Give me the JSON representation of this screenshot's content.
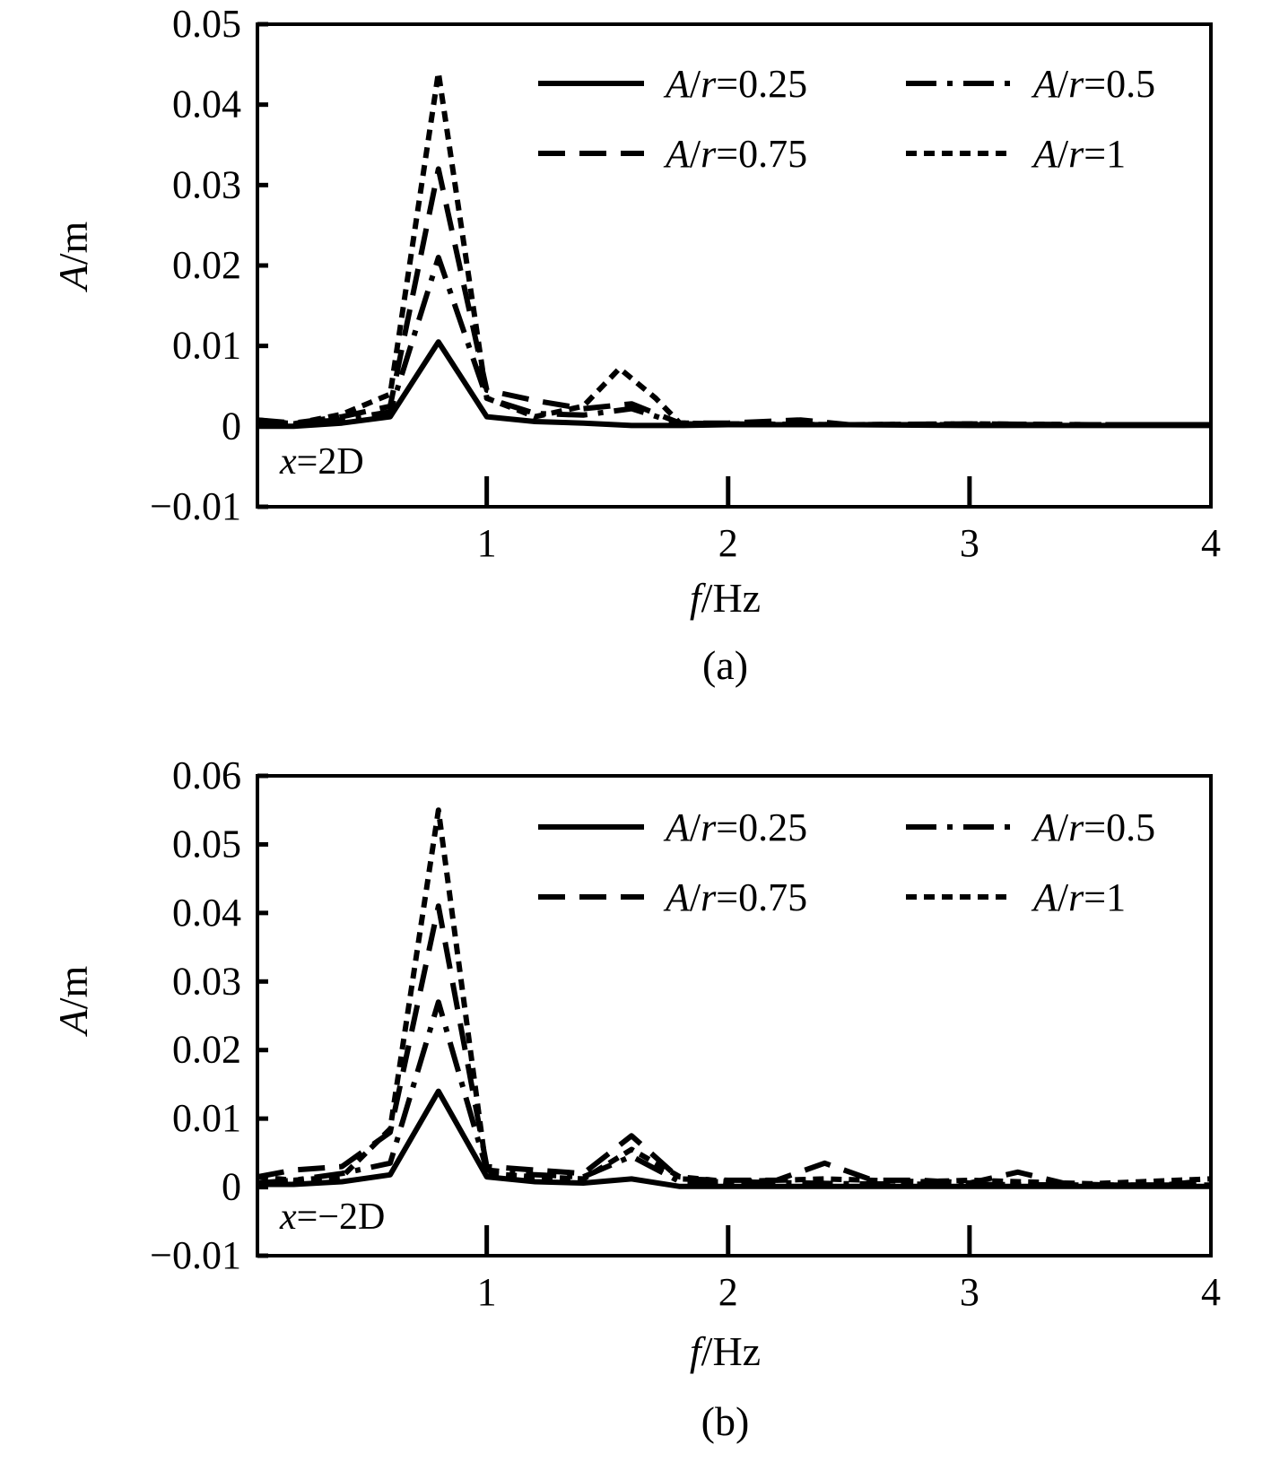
{
  "chart_data": [
    {
      "type": "line",
      "caption": "(a)",
      "annotation_var": "x",
      "annotation_value": "=2D",
      "xlabel_var": "f",
      "xlabel_unit": "/Hz",
      "ylabel_var": "A",
      "ylabel_unit": "/m",
      "xlim": [
        0.05,
        4
      ],
      "ylim": [
        -0.01,
        0.05
      ],
      "x_ticks": [
        "1",
        "2",
        "3",
        "4"
      ],
      "x_tick_values": [
        1,
        2,
        3,
        4
      ],
      "y_ticks": [
        "0.05",
        "0.04",
        "0.03",
        "0.02",
        "0.01",
        "0",
        "−0.01"
      ],
      "y_tick_values": [
        0.05,
        0.04,
        0.03,
        0.02,
        0.01,
        0,
        -0.01
      ],
      "legend_position": "top-right",
      "series": [
        {
          "label_var": "A",
          "label_sep": "/",
          "label_var2": "r",
          "label_eq": "=0.25",
          "style": "solid",
          "x": [
            0.05,
            0.2,
            0.4,
            0.6,
            0.8,
            1.0,
            1.2,
            1.4,
            1.6,
            1.8,
            2.0,
            2.5,
            3.0,
            3.5,
            4.0
          ],
          "y": [
            0.0,
            0.0,
            0.0004,
            0.0012,
            0.0105,
            0.0012,
            0.0006,
            0.0004,
            0.0001,
            0.0001,
            0.0002,
            0.0002,
            0.0001,
            0.0001,
            0.0001
          ]
        },
        {
          "label_var": "A",
          "label_sep": "/",
          "label_var2": "r",
          "label_eq": "=0.5",
          "style": "dashdot",
          "x": [
            0.05,
            0.2,
            0.4,
            0.6,
            0.8,
            1.0,
            1.2,
            1.4,
            1.6,
            1.8,
            2.0,
            2.5,
            3.0,
            3.5,
            4.0
          ],
          "y": [
            0.0004,
            0.0004,
            0.0008,
            0.0018,
            0.021,
            0.0035,
            0.0016,
            0.0014,
            0.0022,
            0.0003,
            0.0003,
            0.0002,
            0.0002,
            0.0002,
            0.0002
          ]
        },
        {
          "label_var": "A",
          "label_sep": "/",
          "label_var2": "r",
          "label_eq": "=0.75",
          "style": "dashed",
          "x": [
            0.05,
            0.2,
            0.4,
            0.6,
            0.8,
            1.0,
            1.2,
            1.4,
            1.6,
            1.8,
            2.0,
            2.3,
            2.5,
            3.0,
            3.5,
            4.0
          ],
          "y": [
            0.0008,
            0.0004,
            0.0012,
            0.0025,
            0.032,
            0.0045,
            0.0032,
            0.0022,
            0.0028,
            0.0004,
            0.0004,
            0.0008,
            0.0002,
            0.0003,
            0.0002,
            0.0002
          ]
        },
        {
          "label_var": "A",
          "label_sep": "/",
          "label_var2": "r",
          "label_eq": "=1",
          "style": "dotted",
          "x": [
            0.05,
            0.2,
            0.4,
            0.6,
            0.8,
            1.0,
            1.2,
            1.4,
            1.55,
            1.7,
            1.8,
            2.0,
            2.5,
            3.0,
            3.5,
            4.0
          ],
          "y": [
            0.0008,
            0.0003,
            0.0015,
            0.004,
            0.044,
            0.0035,
            0.0012,
            0.0025,
            0.0072,
            0.0035,
            0.0004,
            0.0003,
            0.0002,
            0.0003,
            0.0002,
            0.0002
          ]
        }
      ]
    },
    {
      "type": "line",
      "caption": "(b)",
      "annotation_var": "x",
      "annotation_value": "=−2D",
      "xlabel_var": "f",
      "xlabel_unit": "/Hz",
      "ylabel_var": "A",
      "ylabel_unit": "/m",
      "xlim": [
        0.05,
        4
      ],
      "ylim": [
        -0.01,
        0.06
      ],
      "x_ticks": [
        "1",
        "2",
        "3",
        "4"
      ],
      "x_tick_values": [
        1,
        2,
        3,
        4
      ],
      "y_ticks": [
        "0.06",
        "0.05",
        "0.04",
        "0.03",
        "0.02",
        "0.01",
        "0",
        "−0.01"
      ],
      "y_tick_values": [
        0.06,
        0.05,
        0.04,
        0.03,
        0.02,
        0.01,
        0,
        -0.01
      ],
      "legend_position": "top-right",
      "series": [
        {
          "label_var": "A",
          "label_sep": "/",
          "label_var2": "r",
          "label_eq": "=0.25",
          "style": "solid",
          "x": [
            0.05,
            0.2,
            0.4,
            0.6,
            0.8,
            1.0,
            1.2,
            1.4,
            1.6,
            1.8,
            2.0,
            2.5,
            3.0,
            3.5,
            4.0
          ],
          "y": [
            0.0004,
            0.0004,
            0.0008,
            0.0018,
            0.014,
            0.0015,
            0.0008,
            0.0006,
            0.0012,
            0.0001,
            0.0001,
            0.0001,
            0.0001,
            0.0001,
            0.0001
          ]
        },
        {
          "label_var": "A",
          "label_sep": "/",
          "label_var2": "r",
          "label_eq": "=0.5",
          "style": "dashdot",
          "x": [
            0.05,
            0.2,
            0.4,
            0.6,
            0.8,
            1.0,
            1.2,
            1.4,
            1.6,
            1.8,
            2.0,
            2.5,
            3.0,
            3.5,
            4.0
          ],
          "y": [
            0.0006,
            0.001,
            0.002,
            0.0035,
            0.027,
            0.0025,
            0.0018,
            0.0015,
            0.0045,
            0.0008,
            0.0008,
            0.0005,
            0.0004,
            0.0003,
            0.0003
          ]
        },
        {
          "label_var": "A",
          "label_sep": "/",
          "label_var2": "r",
          "label_eq": "=0.75",
          "style": "dashed",
          "x": [
            0.05,
            0.2,
            0.4,
            0.6,
            0.8,
            1.0,
            1.2,
            1.4,
            1.6,
            1.8,
            2.0,
            2.2,
            2.4,
            2.6,
            2.8,
            3.0,
            3.2,
            3.4,
            3.6,
            3.8,
            4.0
          ],
          "y": [
            0.0015,
            0.0025,
            0.003,
            0.008,
            0.041,
            0.003,
            0.0025,
            0.002,
            0.0075,
            0.0012,
            0.001,
            0.001,
            0.0035,
            0.001,
            0.001,
            0.0006,
            0.0022,
            0.0005,
            0.0003,
            0.0003,
            0.001
          ]
        },
        {
          "label_var": "A",
          "label_sep": "/",
          "label_var2": "r",
          "label_eq": "=1",
          "style": "dotted",
          "x": [
            0.05,
            0.2,
            0.4,
            0.6,
            0.8,
            1.0,
            1.2,
            1.4,
            1.6,
            1.8,
            2.0,
            2.4,
            2.8,
            3.0,
            3.5,
            4.0
          ],
          "y": [
            0.0015,
            0.001,
            0.0015,
            0.0085,
            0.055,
            0.002,
            0.0015,
            0.0012,
            0.0055,
            0.0015,
            0.0008,
            0.0012,
            0.0008,
            0.001,
            0.0005,
            0.0012
          ]
        }
      ]
    }
  ]
}
